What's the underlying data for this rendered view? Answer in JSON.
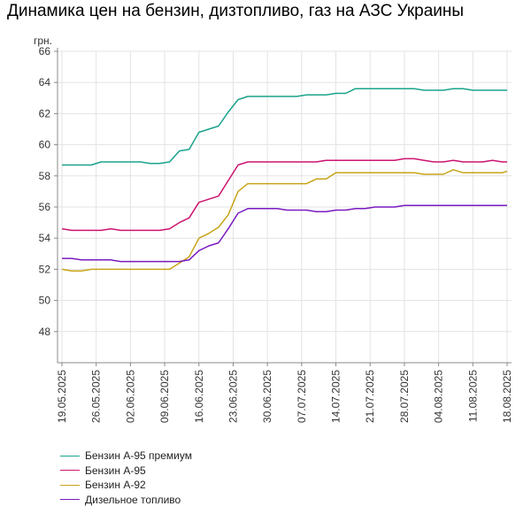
{
  "title": "Динамика цен на бензин, дизтопливо, газ на АЗС Украины",
  "chart_data": {
    "type": "line",
    "title": "Динамика цен на бензин, дизтопливо, газ на АЗС Украины",
    "ylabel": "грн.",
    "xlabel": "",
    "ylim": [
      46,
      66
    ],
    "yticks": [
      48,
      50,
      52,
      54,
      56,
      58,
      60,
      62,
      64,
      66
    ],
    "grid": true,
    "legend_position": "bottom-left",
    "xticks": [
      "19.05.2025",
      "26.05.2025",
      "02.06.2025",
      "09.06.2025",
      "16.06.2025",
      "23.06.2025",
      "30.06.2025",
      "07.07.2025",
      "14.07.2025",
      "21.07.2025",
      "28.07.2025",
      "04.08.2025",
      "11.08.2025",
      "18.08.2025"
    ],
    "x": [
      "19.05.2025",
      "21.05.2025",
      "23.05.2025",
      "25.05.2025",
      "27.05.2025",
      "29.05.2025",
      "31.05.2025",
      "02.06.2025",
      "04.06.2025",
      "06.06.2025",
      "08.06.2025",
      "10.06.2025",
      "12.06.2025",
      "14.06.2025",
      "16.06.2025",
      "18.06.2025",
      "20.06.2025",
      "22.06.2025",
      "24.06.2025",
      "26.06.2025",
      "28.06.2025",
      "30.06.2025",
      "02.07.2025",
      "04.07.2025",
      "06.07.2025",
      "08.07.2025",
      "10.07.2025",
      "12.07.2025",
      "14.07.2025",
      "16.07.2025",
      "18.07.2025",
      "20.07.2025",
      "22.07.2025",
      "24.07.2025",
      "26.07.2025",
      "28.07.2025",
      "30.07.2025",
      "01.08.2025",
      "03.08.2025",
      "05.08.2025",
      "07.08.2025",
      "09.08.2025",
      "11.08.2025",
      "13.08.2025",
      "15.08.2025",
      "17.08.2025",
      "18.08.2025"
    ],
    "series": [
      {
        "name": "Бензин А-95 премиум",
        "color": "#1aa38c",
        "values": [
          58.7,
          58.7,
          58.7,
          58.7,
          58.9,
          58.9,
          58.9,
          58.9,
          58.9,
          58.8,
          58.8,
          58.9,
          59.6,
          59.7,
          60.8,
          61.0,
          61.2,
          62.1,
          62.9,
          63.1,
          63.1,
          63.1,
          63.1,
          63.1,
          63.1,
          63.2,
          63.2,
          63.2,
          63.3,
          63.3,
          63.6,
          63.6,
          63.6,
          63.6,
          63.6,
          63.6,
          63.6,
          63.5,
          63.5,
          63.5,
          63.6,
          63.6,
          63.5,
          63.5,
          63.5,
          63.5,
          63.5
        ]
      },
      {
        "name": "Бензин А-95",
        "color": "#cc1470",
        "values": [
          54.6,
          54.5,
          54.5,
          54.5,
          54.5,
          54.6,
          54.5,
          54.5,
          54.5,
          54.5,
          54.5,
          54.6,
          55.0,
          55.3,
          56.3,
          56.5,
          56.7,
          57.7,
          58.7,
          58.9,
          58.9,
          58.9,
          58.9,
          58.9,
          58.9,
          58.9,
          58.9,
          59.0,
          59.0,
          59.0,
          59.0,
          59.0,
          59.0,
          59.0,
          59.0,
          59.1,
          59.1,
          59.0,
          58.9,
          58.9,
          59.0,
          58.9,
          58.9,
          58.9,
          59.0,
          58.9,
          58.9
        ]
      },
      {
        "name": "Бензин А-92",
        "color": "#c8a418",
        "values": [
          52.0,
          51.9,
          51.9,
          52.0,
          52.0,
          52.0,
          52.0,
          52.0,
          52.0,
          52.0,
          52.0,
          52.0,
          52.4,
          52.8,
          54.0,
          54.3,
          54.7,
          55.5,
          57.0,
          57.5,
          57.5,
          57.5,
          57.5,
          57.5,
          57.5,
          57.5,
          57.8,
          57.8,
          58.2,
          58.2,
          58.2,
          58.2,
          58.2,
          58.2,
          58.2,
          58.2,
          58.2,
          58.1,
          58.1,
          58.1,
          58.4,
          58.2,
          58.2,
          58.2,
          58.2,
          58.2,
          58.3
        ]
      },
      {
        "name": "Дизельное топливо",
        "color": "#7a1ac0",
        "values": [
          52.7,
          52.7,
          52.6,
          52.6,
          52.6,
          52.6,
          52.5,
          52.5,
          52.5,
          52.5,
          52.5,
          52.5,
          52.5,
          52.6,
          53.2,
          53.5,
          53.7,
          54.6,
          55.6,
          55.9,
          55.9,
          55.9,
          55.9,
          55.8,
          55.8,
          55.8,
          55.7,
          55.7,
          55.8,
          55.8,
          55.9,
          55.9,
          56.0,
          56.0,
          56.0,
          56.1,
          56.1,
          56.1,
          56.1,
          56.1,
          56.1,
          56.1,
          56.1,
          56.1,
          56.1,
          56.1,
          56.1
        ]
      }
    ]
  }
}
